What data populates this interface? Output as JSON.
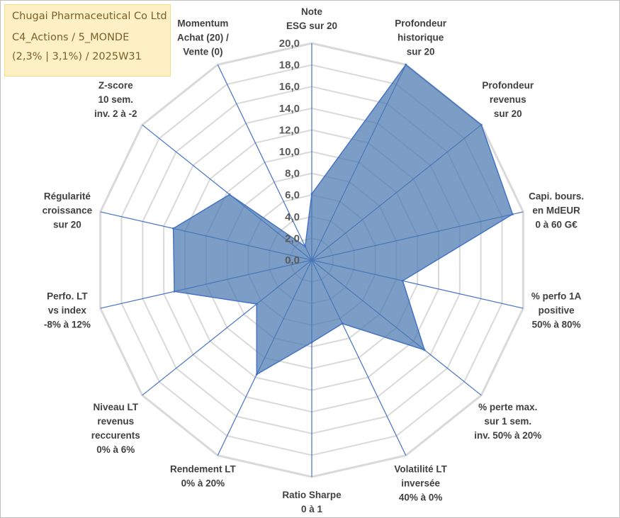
{
  "title_box": {
    "line1": "Chugai Pharmaceutical Co Ltd",
    "line2": "C4_Actions / 5_MONDE",
    "line3": "(2,3% | 3,1%) / 2025W31"
  },
  "colors": {
    "fill": "#4a78b0",
    "stroke": "#4472c4",
    "grid": "#d9d9d9",
    "spoke": "#4472c4",
    "title_bg": "#fdf0c4"
  },
  "chart_data": {
    "type": "radar",
    "rmin": 0,
    "rmax": 20,
    "tick_labels": [
      "0,0",
      "2,0",
      "4,0",
      "6,0",
      "8,0",
      "10,0",
      "12,0",
      "14,0",
      "16,0",
      "18,0",
      "20,0"
    ],
    "axes": [
      {
        "lines": [
          "Note",
          "ESG sur 20"
        ]
      },
      {
        "lines": [
          "Profondeur",
          "historique",
          "sur 20"
        ]
      },
      {
        "lines": [
          "Profondeur",
          "revenus",
          "sur 20"
        ]
      },
      {
        "lines": [
          "Capi. bours.",
          "en MdEUR",
          "0 à 60 G€"
        ]
      },
      {
        "lines": [
          "% perfo 1A",
          "positive",
          "50% à 80%"
        ]
      },
      {
        "lines": [
          "% perte max.",
          "sur 1 sem.",
          "inv. 50% à 20%"
        ]
      },
      {
        "lines": [
          "Volatilité LT",
          "inversée",
          "40% à 0%"
        ]
      },
      {
        "lines": [
          "Ratio Sharpe",
          "0 à 1"
        ]
      },
      {
        "lines": [
          "Rendement LT",
          "0% à 20%"
        ]
      },
      {
        "lines": [
          "Niveau LT",
          "revenus",
          "reccurents",
          "0% à 6%"
        ]
      },
      {
        "lines": [
          "Perfo. LT",
          "vs index",
          "-8% à 12%"
        ]
      },
      {
        "lines": [
          "Régularité",
          "croissance",
          "sur 20"
        ]
      },
      {
        "lines": [
          "Z-score",
          "10 sem.",
          "inv. 2 à -2"
        ]
      },
      {
        "lines": [
          "Momentum",
          "Achat (20) /",
          "Vente (0)"
        ]
      }
    ],
    "series": [
      {
        "values": [
          6.1,
          20.0,
          20.0,
          19.0,
          8.6,
          13.3,
          6.5,
          7.6,
          11.7,
          6.5,
          13.0,
          13.1,
          9.7,
          1.4
        ]
      }
    ]
  }
}
